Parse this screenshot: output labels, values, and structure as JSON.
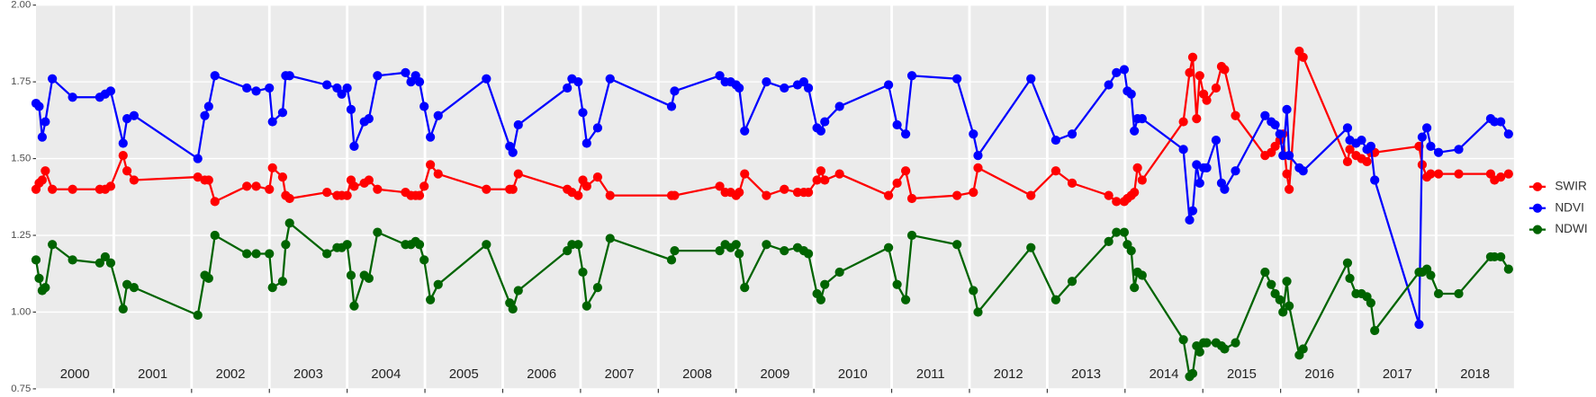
{
  "chart_data": {
    "type": "line",
    "x": [
      2000.0,
      2000.04,
      2000.08,
      2000.12,
      2000.21,
      2000.47,
      2000.82,
      2000.89,
      2000.96,
      2001.12,
      2001.17,
      2001.26,
      2002.08,
      2002.17,
      2002.22,
      2002.3,
      2002.71,
      2002.83,
      2003.0,
      2003.04,
      2003.17,
      2003.21,
      2003.26,
      2003.74,
      2003.87,
      2003.93,
      2004.0,
      2004.05,
      2004.09,
      2004.22,
      2004.28,
      2004.39,
      2004.75,
      2004.82,
      2004.88,
      2004.93,
      2004.99,
      2005.07,
      2005.17,
      2005.79,
      2006.09,
      2006.13,
      2006.2,
      2006.83,
      2006.89,
      2006.97,
      2007.03,
      2007.08,
      2007.22,
      2007.38,
      2008.17,
      2008.21,
      2008.79,
      2008.86,
      2008.93,
      2009.0,
      2009.04,
      2009.11,
      2009.39,
      2009.62,
      2009.79,
      2009.87,
      2009.93,
      2010.04,
      2010.09,
      2010.14,
      2010.33,
      2010.96,
      2011.07,
      2011.18,
      2011.26,
      2011.84,
      2012.05,
      2012.11,
      2012.79,
      2013.11,
      2013.32,
      2013.79,
      2013.89,
      2013.99,
      2014.03,
      2014.08,
      2014.12,
      2014.16,
      2014.22,
      2014.75,
      2014.83,
      2014.87,
      2014.92,
      2014.96,
      2015.01,
      2015.05,
      2015.17,
      2015.24,
      2015.28,
      2015.42,
      2015.8,
      2015.88,
      2015.93,
      2015.99,
      2016.03,
      2016.08,
      2016.11,
      2016.24,
      2016.29,
      2016.86,
      2016.89,
      2016.97,
      2017.04,
      2017.11,
      2017.16,
      2017.21,
      2017.78,
      2017.82,
      2017.88,
      2017.93,
      2018.03,
      2018.29,
      2018.7,
      2018.75,
      2018.83,
      2018.93
    ],
    "series": [
      {
        "name": "SWIR",
        "color": "#ff0000",
        "values": [
          1.4,
          1.42,
          1.43,
          1.46,
          1.4,
          1.4,
          1.4,
          1.4,
          1.41,
          1.51,
          1.46,
          1.43,
          1.44,
          1.43,
          1.43,
          1.36,
          1.41,
          1.41,
          1.4,
          1.47,
          1.44,
          1.38,
          1.37,
          1.39,
          1.38,
          1.38,
          1.38,
          1.43,
          1.41,
          1.42,
          1.43,
          1.4,
          1.39,
          1.38,
          1.38,
          1.38,
          1.41,
          1.48,
          1.45,
          1.4,
          1.4,
          1.4,
          1.45,
          1.4,
          1.39,
          1.38,
          1.43,
          1.41,
          1.44,
          1.38,
          1.38,
          1.38,
          1.41,
          1.39,
          1.39,
          1.38,
          1.39,
          1.45,
          1.38,
          1.4,
          1.39,
          1.39,
          1.39,
          1.43,
          1.46,
          1.43,
          1.45,
          1.38,
          1.42,
          1.46,
          1.37,
          1.38,
          1.39,
          1.47,
          1.38,
          1.46,
          1.42,
          1.38,
          1.36,
          1.36,
          1.37,
          1.38,
          1.39,
          1.47,
          1.43,
          1.62,
          1.78,
          1.83,
          1.63,
          1.77,
          1.71,
          1.69,
          1.73,
          1.8,
          1.79,
          1.64,
          1.51,
          1.52,
          1.54,
          1.56,
          1.58,
          1.45,
          1.4,
          1.85,
          1.83,
          1.49,
          1.53,
          1.51,
          1.5,
          1.49,
          1.52,
          1.52,
          1.54,
          1.48,
          1.44,
          1.45,
          1.45,
          1.45,
          1.45,
          1.43,
          1.44,
          1.45
        ]
      },
      {
        "name": "NDVI",
        "color": "#0000ff",
        "values": [
          1.68,
          1.67,
          1.57,
          1.62,
          1.76,
          1.7,
          1.7,
          1.71,
          1.72,
          1.55,
          1.63,
          1.64,
          1.5,
          1.64,
          1.67,
          1.77,
          1.73,
          1.72,
          1.73,
          1.62,
          1.65,
          1.77,
          1.77,
          1.74,
          1.73,
          1.71,
          1.73,
          1.66,
          1.54,
          1.62,
          1.63,
          1.77,
          1.78,
          1.75,
          1.77,
          1.75,
          1.67,
          1.57,
          1.64,
          1.76,
          1.54,
          1.52,
          1.61,
          1.73,
          1.76,
          1.75,
          1.65,
          1.55,
          1.6,
          1.76,
          1.67,
          1.72,
          1.77,
          1.75,
          1.75,
          1.74,
          1.73,
          1.59,
          1.75,
          1.73,
          1.74,
          1.75,
          1.73,
          1.6,
          1.59,
          1.62,
          1.67,
          1.74,
          1.61,
          1.58,
          1.77,
          1.76,
          1.58,
          1.51,
          1.76,
          1.56,
          1.58,
          1.74,
          1.78,
          1.79,
          1.72,
          1.71,
          1.59,
          1.63,
          1.63,
          1.53,
          1.3,
          1.33,
          1.48,
          1.42,
          1.47,
          1.47,
          1.56,
          1.42,
          1.4,
          1.46,
          1.64,
          1.62,
          1.61,
          1.58,
          1.51,
          1.66,
          1.51,
          1.47,
          1.46,
          1.6,
          1.56,
          1.55,
          1.56,
          1.53,
          1.54,
          1.43,
          0.96,
          1.57,
          1.6,
          1.54,
          1.52,
          1.53,
          1.63,
          1.62,
          1.62,
          1.58
        ]
      },
      {
        "name": "NDWI",
        "color": "#006400",
        "values": [
          1.17,
          1.11,
          1.07,
          1.08,
          1.22,
          1.17,
          1.16,
          1.18,
          1.16,
          1.01,
          1.09,
          1.08,
          0.99,
          1.12,
          1.11,
          1.25,
          1.19,
          1.19,
          1.19,
          1.08,
          1.1,
          1.22,
          1.29,
          1.19,
          1.21,
          1.21,
          1.22,
          1.12,
          1.02,
          1.12,
          1.11,
          1.26,
          1.22,
          1.22,
          1.23,
          1.22,
          1.17,
          1.04,
          1.09,
          1.22,
          1.03,
          1.01,
          1.07,
          1.2,
          1.22,
          1.22,
          1.13,
          1.02,
          1.08,
          1.24,
          1.17,
          1.2,
          1.2,
          1.22,
          1.21,
          1.22,
          1.19,
          1.08,
          1.22,
          1.2,
          1.21,
          1.2,
          1.19,
          1.06,
          1.04,
          1.09,
          1.13,
          1.21,
          1.09,
          1.04,
          1.25,
          1.22,
          1.07,
          1.0,
          1.21,
          1.04,
          1.1,
          1.23,
          1.26,
          1.26,
          1.22,
          1.2,
          1.08,
          1.13,
          1.12,
          0.91,
          0.79,
          0.8,
          0.89,
          0.87,
          0.9,
          0.9,
          0.9,
          0.89,
          0.88,
          0.9,
          1.13,
          1.09,
          1.06,
          1.04,
          1.0,
          1.1,
          1.02,
          0.86,
          0.88,
          1.16,
          1.11,
          1.06,
          1.06,
          1.05,
          1.03,
          0.94,
          1.13,
          1.13,
          1.14,
          1.12,
          1.06,
          1.06,
          1.18,
          1.18,
          1.18,
          1.14
        ]
      }
    ],
    "xlim": [
      2000,
      2019
    ],
    "xticks": [
      {
        "value": 2000.5,
        "label": "2000"
      },
      {
        "value": 2001.5,
        "label": "2001"
      },
      {
        "value": 2002.5,
        "label": "2002"
      },
      {
        "value": 2003.5,
        "label": "2003"
      },
      {
        "value": 2004.5,
        "label": "2004"
      },
      {
        "value": 2005.5,
        "label": "2005"
      },
      {
        "value": 2006.5,
        "label": "2006"
      },
      {
        "value": 2007.5,
        "label": "2007"
      },
      {
        "value": 2008.5,
        "label": "2008"
      },
      {
        "value": 2009.5,
        "label": "2009"
      },
      {
        "value": 2010.5,
        "label": "2010"
      },
      {
        "value": 2011.5,
        "label": "2011"
      },
      {
        "value": 2012.5,
        "label": "2012"
      },
      {
        "value": 2013.5,
        "label": "2013"
      },
      {
        "value": 2014.5,
        "label": "2014"
      },
      {
        "value": 2015.5,
        "label": "2015"
      },
      {
        "value": 2016.5,
        "label": "2016"
      },
      {
        "value": 2017.5,
        "label": "2017"
      },
      {
        "value": 2018.5,
        "label": "2018"
      }
    ],
    "vlines": [
      2001,
      2002,
      2003,
      2004,
      2005,
      2006,
      2007,
      2008,
      2009,
      2010,
      2011,
      2012,
      2013,
      2014,
      2015,
      2016,
      2017,
      2018
    ],
    "ylim": [
      0.75,
      2.0
    ],
    "yticks": [
      {
        "value": 0.75,
        "label": "0.75"
      },
      {
        "value": 1.0,
        "label": "1.00"
      },
      {
        "value": 1.25,
        "label": "1.25"
      },
      {
        "value": 1.5,
        "label": "1.50"
      },
      {
        "value": 1.75,
        "label": "1.75"
      },
      {
        "value": 2.0,
        "label": "2.00"
      }
    ],
    "grid": true,
    "legend": "right"
  }
}
